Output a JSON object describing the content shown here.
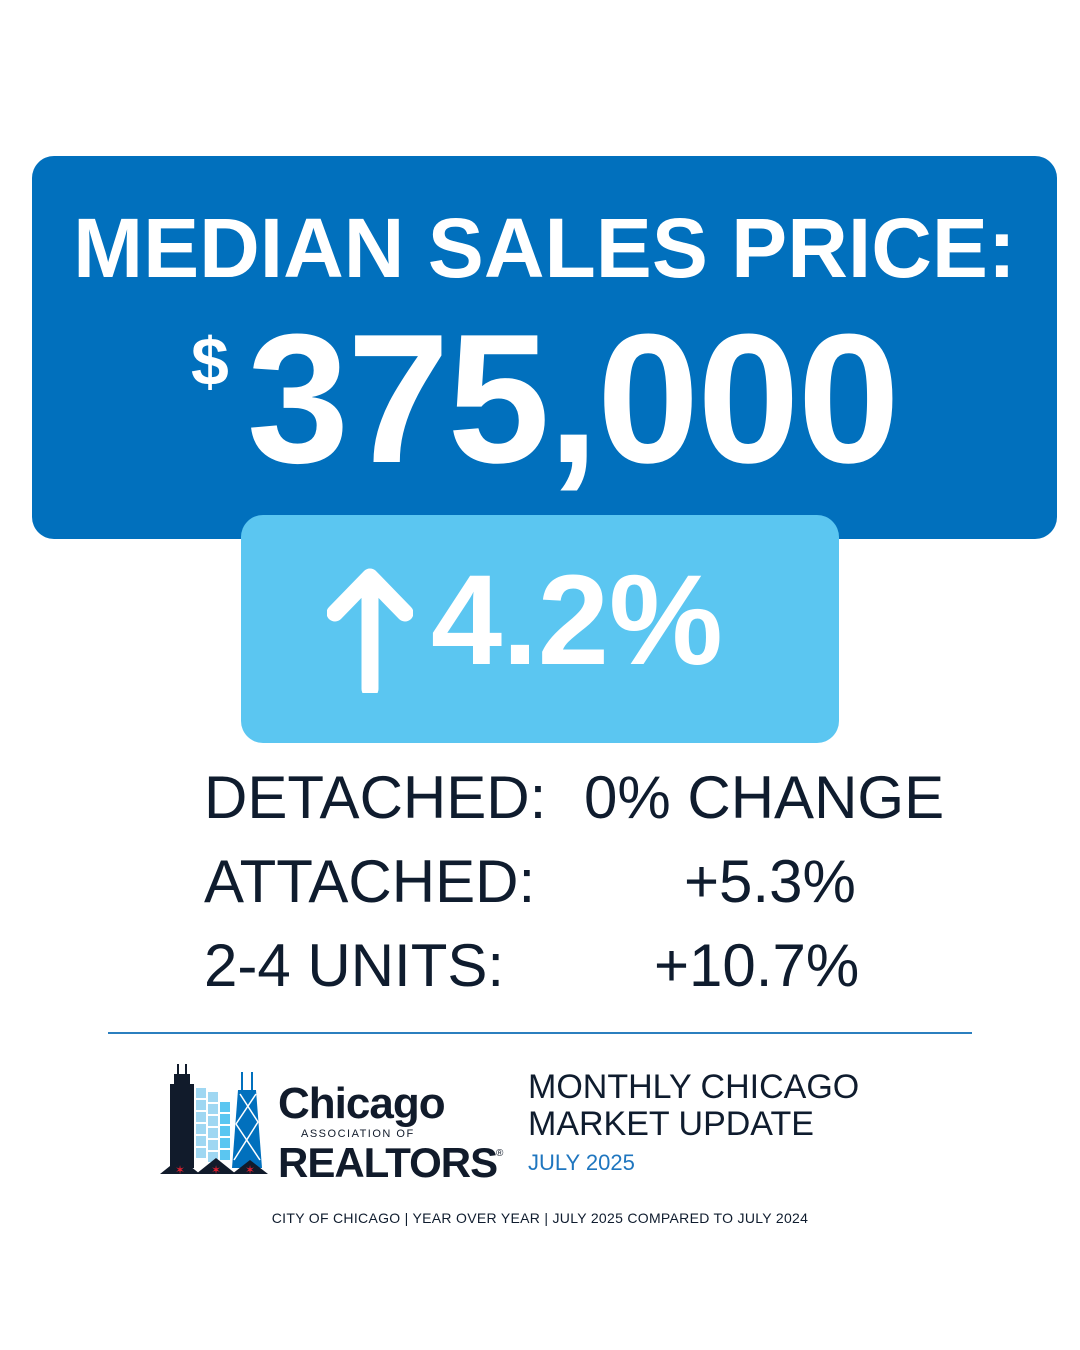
{
  "headline": {
    "title": "MEDIAN SALES PRICE:",
    "currency": "$",
    "price": "375,000"
  },
  "change": {
    "icon": "arrow-up-icon",
    "value": "4.2%",
    "direction": "up"
  },
  "breakdown": [
    {
      "label": "DETACHED:",
      "value": "0% CHANGE"
    },
    {
      "label": "ATTACHED:",
      "value": "+5.3%"
    },
    {
      "label": "2-4 UNITS:",
      "value": "+10.7%"
    }
  ],
  "logo": {
    "line1": "Chicago",
    "line2": "ASSOCIATION OF",
    "line3": "REALTORS",
    "reg": "®"
  },
  "update": {
    "line1": "MONTHLY CHICAGO",
    "line2": "MARKET UPDATE",
    "date": "JULY 2025"
  },
  "footer": "CITY OF CHICAGO | YEAR OVER YEAR | JULY 2025 COMPARED TO JULY 2024",
  "colors": {
    "primary_blue": "#0170bd",
    "light_blue": "#5bc6f1",
    "dark_text": "#0f1c2e",
    "accent_blue": "#1f76bf"
  }
}
